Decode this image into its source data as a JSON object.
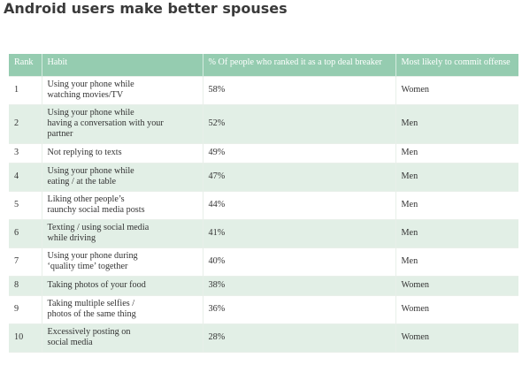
{
  "title": "Android users make better spouses",
  "table": {
    "headers": {
      "rank": "Rank",
      "habit": "Habit",
      "percent": "% Of people who ranked it as a top deal breaker",
      "likely": "Most likely to commit offense"
    },
    "rows": [
      {
        "rank": "1",
        "habit": "Using your phone while\nwatching movies/TV",
        "percent": "58%",
        "likely": "Women"
      },
      {
        "rank": "2",
        "habit": "Using your phone while\nhaving a conversation with your\npartner",
        "percent": "52%",
        "likely": "Men"
      },
      {
        "rank": "3",
        "habit": "Not replying to texts",
        "percent": "49%",
        "likely": "Men"
      },
      {
        "rank": "4",
        "habit": "Using your phone while\neating / at the table",
        "percent": "47%",
        "likely": "Men"
      },
      {
        "rank": "5",
        "habit": "Liking other people’s\nraunchy social media posts",
        "percent": "44%",
        "likely": "Men"
      },
      {
        "rank": "6",
        "habit": "Texting / using social media\nwhile driving",
        "percent": "41%",
        "likely": "Men"
      },
      {
        "rank": "7",
        "habit": "Using your phone during\n‘quality time’ together",
        "percent": "40%",
        "likely": "Men"
      },
      {
        "rank": "8",
        "habit": "Taking photos of your food",
        "percent": "38%",
        "likely": "Women"
      },
      {
        "rank": "9",
        "habit": "Taking multiple selfies /\nphotos of the same thing",
        "percent": "36%",
        "likely": "Women"
      },
      {
        "rank": "10",
        "habit": "Excessively posting on\nsocial media",
        "percent": "28%",
        "likely": "Women"
      }
    ]
  },
  "colors": {
    "header_bg": "#95ccb0",
    "stripe_bg": "#e2efe6",
    "title_text": "#3a3a3a"
  }
}
